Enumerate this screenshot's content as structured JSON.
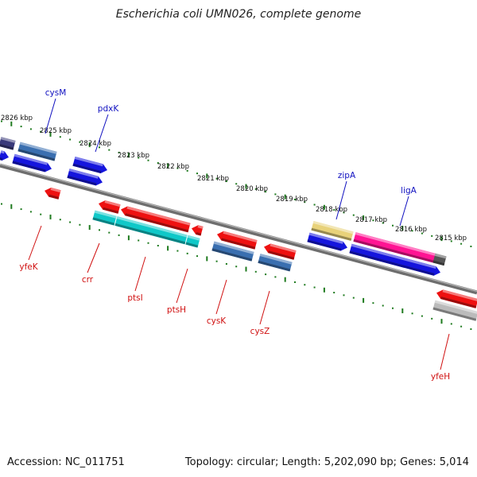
{
  "title": "Escherichia coli UMN026, complete genome",
  "footer": {
    "accession": "Accession: NC_011751",
    "summary": "Topology: circular; Length: 5,202,090 bp; Genes: 5,014"
  },
  "colors": {
    "backbone": "#7a7a7a",
    "tick": "#1e7a1e",
    "label_top": "#1010c0",
    "label_bottom": "#d01010"
  },
  "scale_labels": [
    "2826 kbp",
    "2825 kbp",
    "2824 kbp",
    "2823 kbp",
    "2822 kbp",
    "2821 kbp",
    "2820 kbp",
    "2819 kbp",
    "2818 kbp",
    "2817 kbp",
    "2816 kbp",
    "2815 kbp"
  ],
  "genes_top": [
    {
      "name": "cysM",
      "color": "#3a6fb0"
    },
    {
      "name": "pdxK",
      "color": "#1515dd"
    },
    {
      "name": "zipA",
      "color": "#e8d27a"
    },
    {
      "name": "ligA",
      "color": "#ff1493"
    }
  ],
  "genes_bottom": [
    {
      "name": "yfeK",
      "color": "#ee1111"
    },
    {
      "name": "crr",
      "color": "#10c8c8"
    },
    {
      "name": "ptsI",
      "color": "#10c8c8"
    },
    {
      "name": "ptsH",
      "color": "#10c8c8"
    },
    {
      "name": "cysK",
      "color": "#3a6fb0"
    },
    {
      "name": "cysZ",
      "color": "#3a6fb0"
    },
    {
      "name": "yfeH",
      "color": "#bbbbbb"
    }
  ]
}
